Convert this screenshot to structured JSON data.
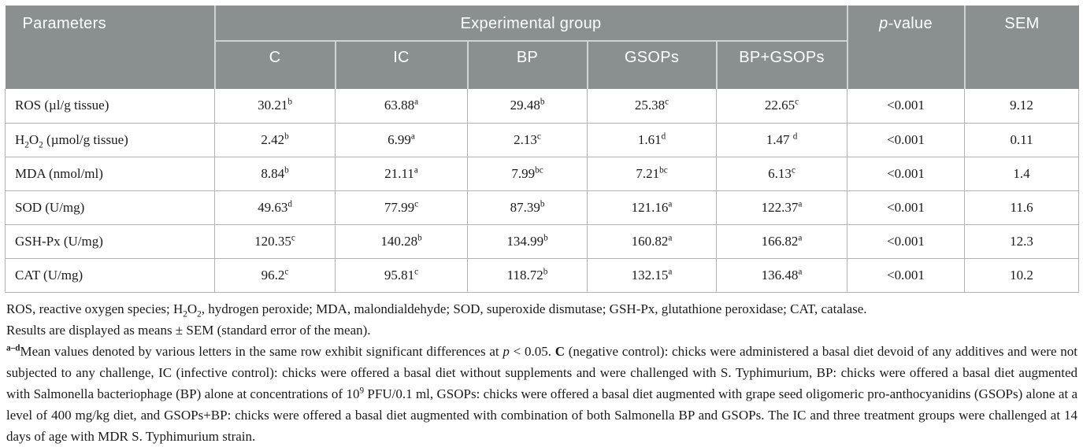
{
  "colors": {
    "header_bg": "#8a9090",
    "header_text": "#ffffff",
    "header_divider": "#ced3d3",
    "body_border": "#b3b3b3"
  },
  "table": {
    "header": {
      "parameters": "Parameters",
      "experimental_group": "Experimental group",
      "p_italic": "p",
      "p_rest": "-value",
      "sem": "SEM",
      "groups": [
        "C",
        "IC",
        "BP",
        "GSOPs",
        "BP+GSOPs"
      ]
    },
    "rows": [
      {
        "param": [
          {
            "t": "ROS (µl/g tissue)"
          }
        ],
        "cells": [
          {
            "v": "30.21",
            "sup": "b"
          },
          {
            "v": "63.88",
            "sup": "a"
          },
          {
            "v": "29.48",
            "sup": "b"
          },
          {
            "v": "25.38",
            "sup": "c"
          },
          {
            "v": "22.65",
            "sup": "c"
          }
        ],
        "p": "<0.001",
        "sem": "9.12"
      },
      {
        "param": [
          {
            "t": "H"
          },
          {
            "t": "2",
            "sub": true
          },
          {
            "t": "O"
          },
          {
            "t": "2",
            "sub": true
          },
          {
            "t": " (µmol/g tissue)"
          }
        ],
        "cells": [
          {
            "v": "2.42",
            "sup": "b"
          },
          {
            "v": "6.99",
            "sup": "a"
          },
          {
            "v": "2.13",
            "sup": "c"
          },
          {
            "v": "1.61",
            "sup": "d"
          },
          {
            "v": "1.47 ",
            "sup": "d"
          }
        ],
        "p": "<0.001",
        "sem": "0.11"
      },
      {
        "param": [
          {
            "t": "MDA (nmol/ml)"
          }
        ],
        "cells": [
          {
            "v": "8.84",
            "sup": "b"
          },
          {
            "v": "21.11",
            "sup": "a"
          },
          {
            "v": "7.99",
            "sup": "bc"
          },
          {
            "v": "7.21",
            "sup": "bc"
          },
          {
            "v": "6.13",
            "sup": "c"
          }
        ],
        "p": "<0.001",
        "sem": "1.4"
      },
      {
        "param": [
          {
            "t": "SOD (U/mg)"
          }
        ],
        "cells": [
          {
            "v": "49.63",
            "sup": "d"
          },
          {
            "v": "77.99",
            "sup": "c"
          },
          {
            "v": "87.39",
            "sup": "b"
          },
          {
            "v": "121.16",
            "sup": "a"
          },
          {
            "v": "122.37",
            "sup": "a"
          }
        ],
        "p": "<0.001",
        "sem": "11.6"
      },
      {
        "param": [
          {
            "t": "GSH-Px (U/mg)"
          }
        ],
        "cells": [
          {
            "v": "120.35",
            "sup": "c"
          },
          {
            "v": "140.28",
            "sup": "b"
          },
          {
            "v": "134.99",
            "sup": "b"
          },
          {
            "v": "160.82",
            "sup": "a"
          },
          {
            "v": "166.82",
            "sup": "a"
          }
        ],
        "p": "<0.001",
        "sem": "12.3"
      },
      {
        "param": [
          {
            "t": "CAT (U/mg)"
          }
        ],
        "cells": [
          {
            "v": "96.2",
            "sup": "c"
          },
          {
            "v": "95.81",
            "sup": "c"
          },
          {
            "v": "118.72",
            "sup": "b"
          },
          {
            "v": "132.15",
            "sup": "a"
          },
          {
            "v": "136.48",
            "sup": "a"
          }
        ],
        "p": "<0.001",
        "sem": "10.2"
      }
    ]
  },
  "footnotes": {
    "paragraphs": [
      {
        "justify": false,
        "segments": [
          {
            "t": "ROS, reactive oxygen species; H"
          },
          {
            "t": "2",
            "sub": true
          },
          {
            "t": "O"
          },
          {
            "t": "2",
            "sub": true
          },
          {
            "t": ", hydrogen peroxide; MDA, malondialdehyde; SOD, superoxide dismutase; GSH-Px, glutathione peroxidase; CAT, catalase."
          }
        ]
      },
      {
        "justify": false,
        "segments": [
          {
            "t": "Results are displayed as means ± SEM (standard error of the mean)."
          }
        ]
      },
      {
        "justify": true,
        "segments": [
          {
            "t": "a–d",
            "sup": true,
            "b": true
          },
          {
            "t": "Mean values denoted by various letters in the same row exhibit significant differences at "
          },
          {
            "t": "p",
            "i": true
          },
          {
            "t": " < 0.05. "
          },
          {
            "t": "C",
            "b": true
          },
          {
            "t": " (negative control): chicks were administered a basal diet devoid of any additives and were not subjected to any challenge, IC (infective control): chicks were offered a basal diet without supplements and were challenged with S. Typhimurium, BP: chicks were offered a basal diet augmented with Salmonella bacteriophage (BP) alone at concentrations of 10"
          },
          {
            "t": "9",
            "sup": true
          },
          {
            "t": " PFU/0.1 ml, GSOPs: chicks were offered a basal diet augmented with grape seed oligomeric pro-anthocyanidins (GSOPs) alone at a level of 400 mg/kg diet, and GSOPs+BP: chicks were offered a basal diet augmented with combination of both Salmonella BP and GSOPs. The IC and three treatment groups were challenged at 14 days of age with MDR S. Typhimurium strain."
          }
        ]
      }
    ]
  }
}
